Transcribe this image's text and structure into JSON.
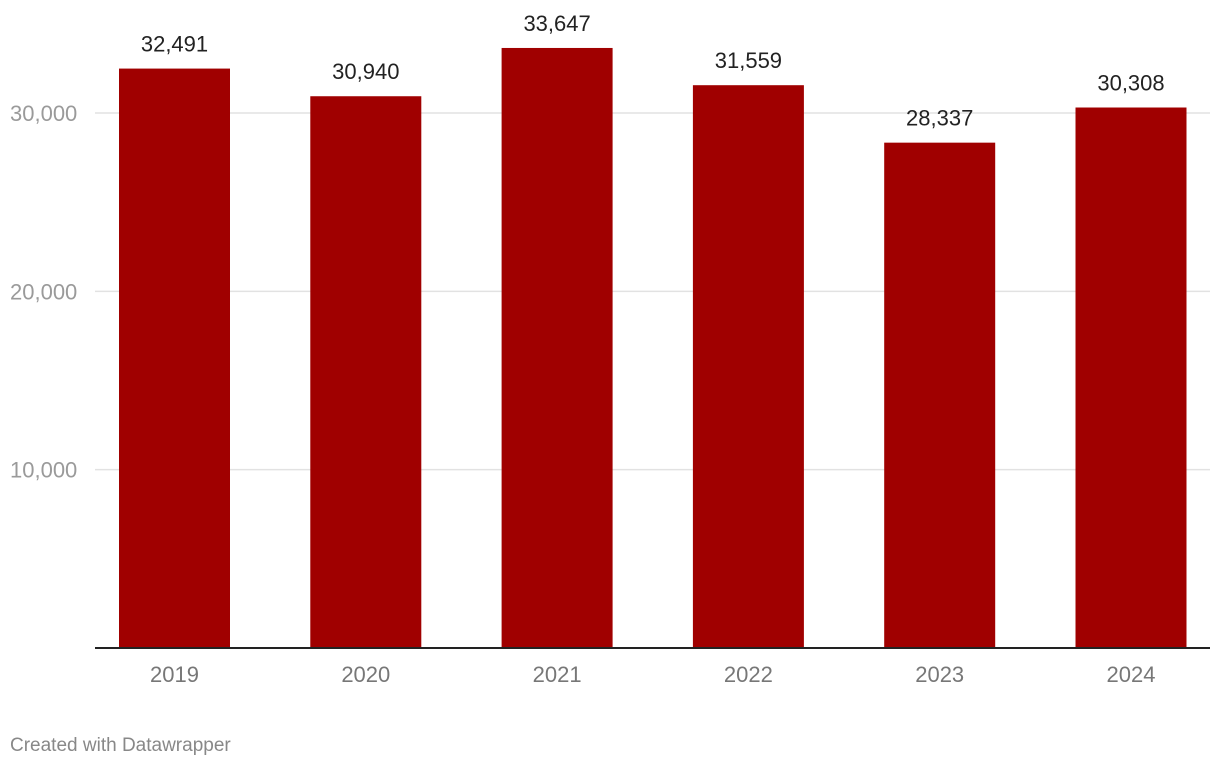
{
  "chart_data": {
    "type": "bar",
    "categories": [
      "2019",
      "2020",
      "2021",
      "2022",
      "2023",
      "2024"
    ],
    "values": [
      32491,
      30940,
      33647,
      31559,
      28337,
      30308
    ],
    "value_labels": [
      "32,491",
      "30,940",
      "33,647",
      "31,559",
      "28,337",
      "30,308"
    ],
    "ylim": [
      0,
      36000
    ],
    "yticks": [
      10000,
      20000,
      30000
    ],
    "ytick_labels": [
      "10,000",
      "20,000",
      "30,000"
    ],
    "grid": true,
    "bar_color": "#a00000",
    "title": "",
    "xlabel": "",
    "ylabel": ""
  },
  "footer": {
    "credit": "Created with Datawrapper"
  }
}
